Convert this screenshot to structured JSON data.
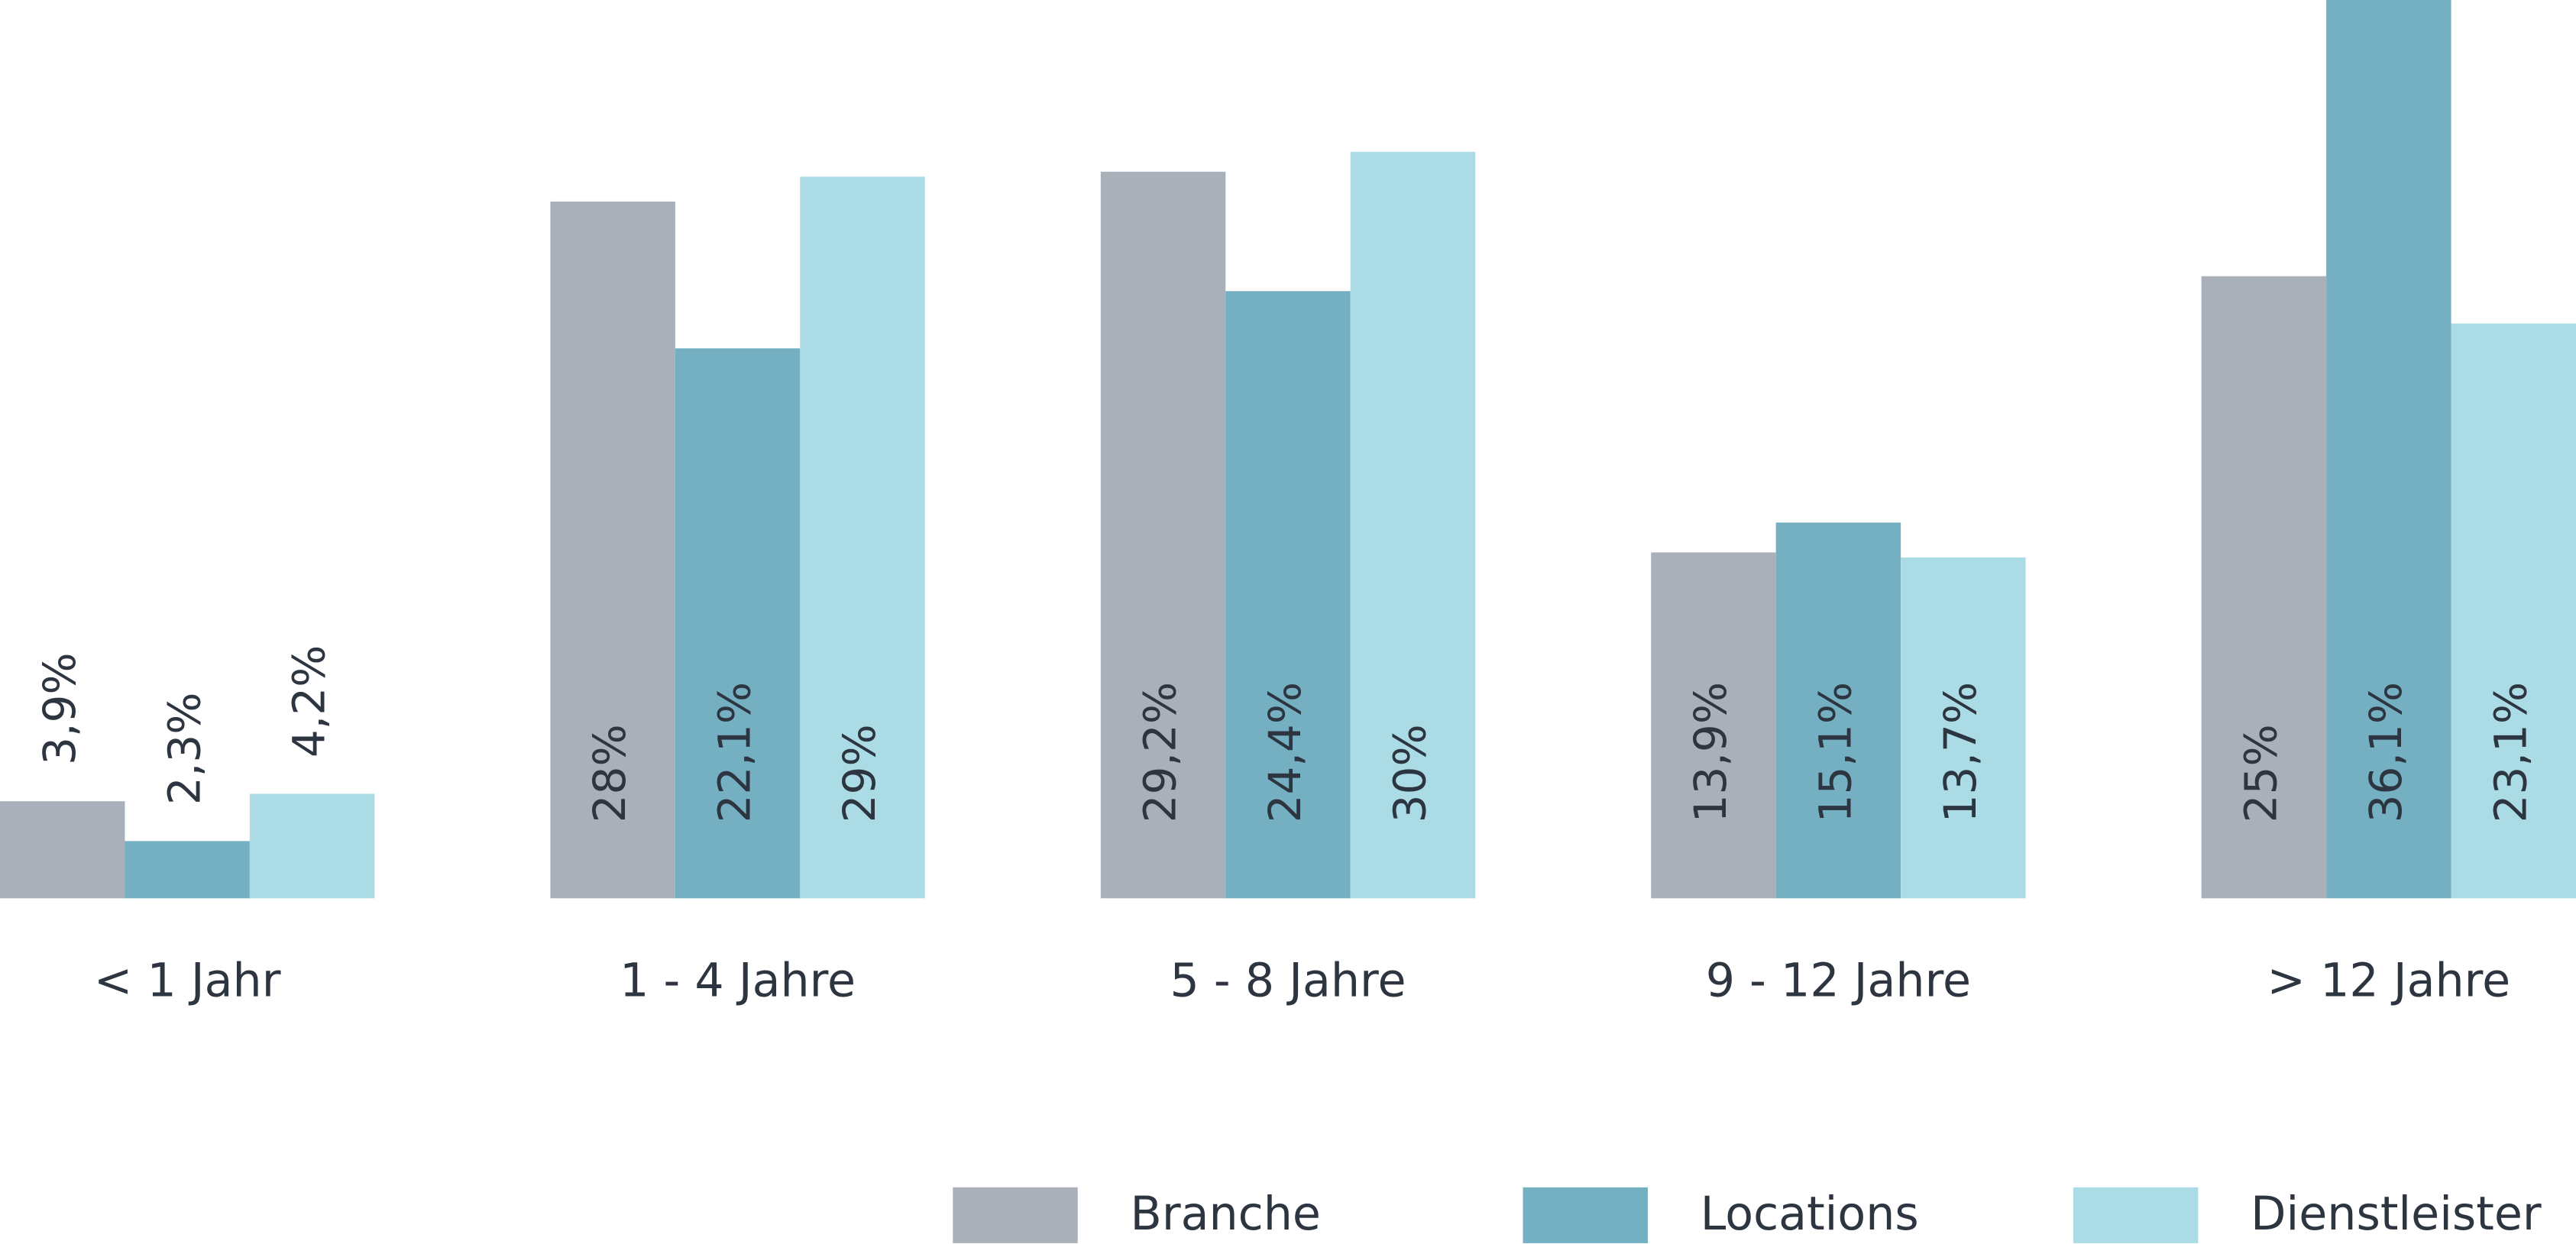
{
  "chart_data": {
    "type": "bar",
    "categories": [
      "< 1 Jahr",
      "1 - 4 Jahre",
      "5 - 8 Jahre",
      "9 - 12 Jahre",
      "> 12 Jahre"
    ],
    "series": [
      {
        "name": "Branche",
        "color": "#a9b0b9",
        "values": [
          3.9,
          28,
          29.2,
          13.9,
          25
        ],
        "value_labels": [
          "3,9%",
          "28%",
          "29,2%",
          "13,9%",
          "25%"
        ]
      },
      {
        "name": "Locations",
        "color": "#74afc2",
        "values": [
          2.3,
          22.1,
          24.4,
          15.1,
          36.1
        ],
        "value_labels": [
          "2,3%",
          "22,1%",
          "24,4%",
          "15,1%",
          "36,1%"
        ]
      },
      {
        "name": "Dienstleister",
        "color": "#abdce6",
        "values": [
          4.2,
          29,
          30,
          13.7,
          23.1
        ],
        "value_labels": [
          "4,2%",
          "29%",
          "30%",
          "13,7%",
          "23,1%"
        ]
      }
    ],
    "ylim": [
      0,
      36.1
    ]
  }
}
